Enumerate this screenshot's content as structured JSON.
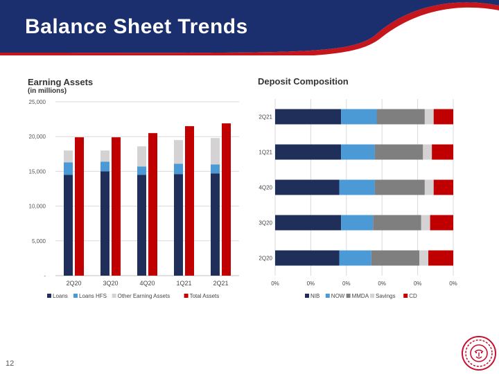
{
  "slide": {
    "title": "Balance Sheet Trends",
    "page_number": "12",
    "colors": {
      "header_navy": "#1b2f6e",
      "header_swoosh": "#c4161c",
      "logo_red": "#c8102e"
    },
    "logo_icon": "lion-head-icon"
  },
  "chart_data": [
    {
      "type": "bar",
      "title": "Earning Assets",
      "subtitle": "(in millions)",
      "categories": [
        "2Q20",
        "3Q20",
        "4Q20",
        "1Q21",
        "2Q21"
      ],
      "stacked": true,
      "ylim": [
        0,
        25000
      ],
      "yticks": [
        0,
        5000,
        10000,
        15000,
        20000,
        25000
      ],
      "ytick_labels": [
        "-",
        "5,000",
        "10,000",
        "15,000",
        "20,000",
        "25,000"
      ],
      "grid": true,
      "legend_position": "bottom",
      "series": [
        {
          "name": "Loans",
          "color": "#1f2f5a",
          "stack": "earning",
          "values": [
            14500,
            15000,
            14500,
            14600,
            14700
          ]
        },
        {
          "name": "Loans HFS",
          "color": "#4b9ad6",
          "stack": "earning",
          "values": [
            1800,
            1400,
            1200,
            1500,
            1300
          ]
        },
        {
          "name": "Other Earning Assets",
          "color": "#d4d2d2",
          "stack": "earning",
          "values": [
            1700,
            1600,
            2900,
            3400,
            3800
          ]
        },
        {
          "name": "Total Assets",
          "color": "#c00000",
          "stack": "total",
          "values": [
            19900,
            19900,
            20500,
            21500,
            21900
          ]
        }
      ]
    },
    {
      "type": "bar",
      "orientation": "horizontal",
      "stacked": "percent",
      "title": "Deposit Composition",
      "categories": [
        "2Q21",
        "1Q21",
        "4Q20",
        "3Q20",
        "2Q20"
      ],
      "xlim": [
        0,
        100
      ],
      "xtick_labels": [
        "0%",
        "0%",
        "0%",
        "0%",
        "0%",
        "0%"
      ],
      "grid": true,
      "legend_position": "bottom",
      "series": [
        {
          "name": "NIB",
          "color": "#1f2f5a",
          "values": [
            37,
            37,
            36,
            37,
            36
          ]
        },
        {
          "name": "NOW",
          "color": "#4b9ad6",
          "values": [
            20,
            19,
            20,
            18,
            18
          ]
        },
        {
          "name": "MMDA",
          "color": "#7f7f7f",
          "values": [
            27,
            27,
            28,
            27,
            27
          ]
        },
        {
          "name": "Savings",
          "color": "#d4d2d2",
          "values": [
            5,
            5,
            5,
            5,
            5
          ]
        },
        {
          "name": "CD",
          "color": "#c00000",
          "values": [
            11,
            12,
            11,
            13,
            14
          ]
        }
      ]
    }
  ]
}
